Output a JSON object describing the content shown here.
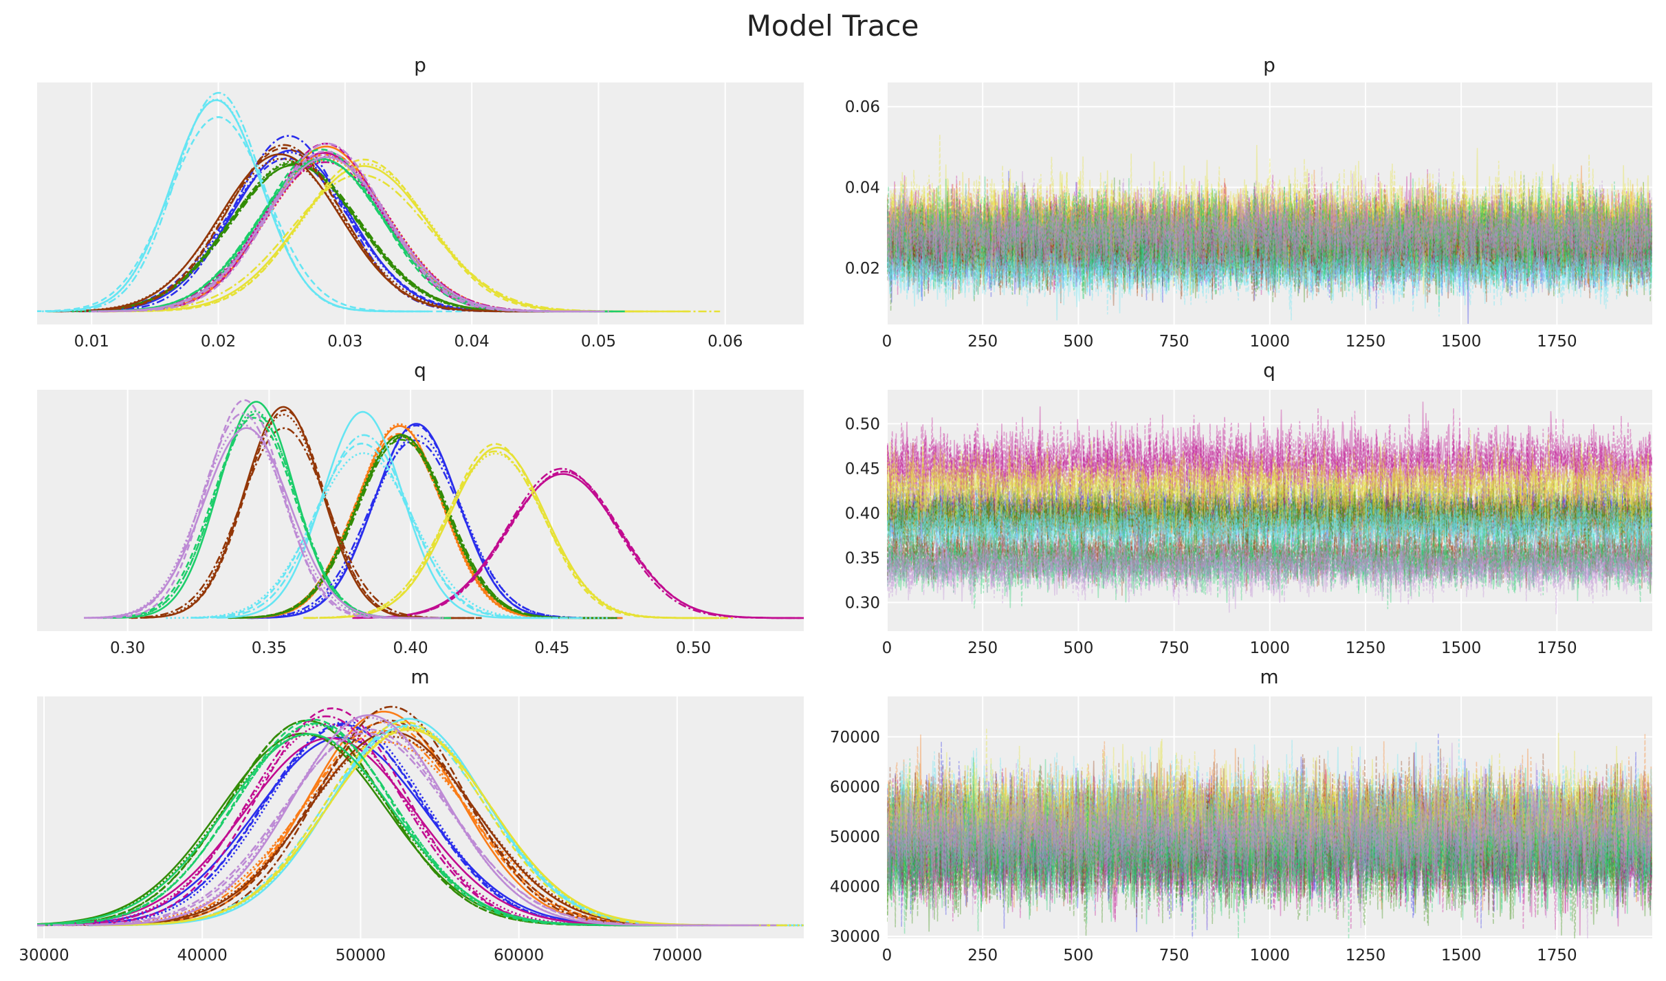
{
  "figure": {
    "title": "Model Trace",
    "background": "#eeeeee",
    "grid_color": "#ffffff"
  },
  "chain_linestyles": [
    "solid",
    "dashed",
    "dotted",
    "dashdot"
  ],
  "chart_data": [
    {
      "type": "line",
      "kind": "kde",
      "title": "p",
      "xlim": [
        0.0057,
        0.0662
      ],
      "grid": "x",
      "xticks": [
        0.01,
        0.02,
        0.03,
        0.04,
        0.05,
        0.06
      ],
      "xtick_labels": [
        "0.01",
        "0.02",
        "0.03",
        "0.04",
        "0.05",
        "0.06"
      ],
      "series": [
        {
          "color": "#2a2eec",
          "mean": 0.0255,
          "sd": 0.0046
        },
        {
          "color": "#fa7c17",
          "mean": 0.0285,
          "sd": 0.0048
        },
        {
          "color": "#328c06",
          "mean": 0.026,
          "sd": 0.005
        },
        {
          "color": "#c10c90",
          "mean": 0.0285,
          "sd": 0.0048
        },
        {
          "color": "#933708",
          "mean": 0.025,
          "sd": 0.0045
        },
        {
          "color": "#65e5f3",
          "mean": 0.02,
          "sd": 0.0035
        },
        {
          "color": "#e6e135",
          "mean": 0.0315,
          "sd": 0.0052
        },
        {
          "color": "#1ccd6a",
          "mean": 0.028,
          "sd": 0.005
        },
        {
          "color": "#bd8ad5",
          "mean": 0.0285,
          "sd": 0.0047
        }
      ]
    },
    {
      "type": "line",
      "kind": "trace",
      "title": "p",
      "xlim": [
        0,
        1999
      ],
      "ylim": [
        0.006,
        0.066
      ],
      "grid": "both",
      "xticks": [
        0,
        250,
        500,
        750,
        1000,
        1250,
        1500,
        1750
      ],
      "xtick_labels": [
        "0",
        "250",
        "500",
        "750",
        "1000",
        "1250",
        "1500",
        "1750"
      ],
      "yticks": [
        0.02,
        0.04,
        0.06
      ],
      "ytick_labels": [
        "0.02",
        "0.04",
        "0.06"
      ],
      "draws": 2000
    },
    {
      "type": "line",
      "kind": "kde",
      "title": "q",
      "xlim": [
        0.268,
        0.539
      ],
      "grid": "x",
      "xticks": [
        0.3,
        0.35,
        0.4,
        0.45,
        0.5
      ],
      "xtick_labels": [
        "0.30",
        "0.35",
        "0.40",
        "0.45",
        "0.50"
      ],
      "series": [
        {
          "color": "#2a2eec",
          "mean": 0.402,
          "sd": 0.016
        },
        {
          "color": "#fa7c17",
          "mean": 0.396,
          "sd": 0.0155
        },
        {
          "color": "#328c06",
          "mean": 0.397,
          "sd": 0.016
        },
        {
          "color": "#c10c90",
          "mean": 0.454,
          "sd": 0.02
        },
        {
          "color": "#933708",
          "mean": 0.355,
          "sd": 0.014
        },
        {
          "color": "#65e5f3",
          "mean": 0.383,
          "sd": 0.016
        },
        {
          "color": "#e6e135",
          "mean": 0.43,
          "sd": 0.017
        },
        {
          "color": "#1ccd6a",
          "mean": 0.345,
          "sd": 0.0145
        },
        {
          "color": "#bd8ad5",
          "mean": 0.341,
          "sd": 0.0145
        }
      ]
    },
    {
      "type": "line",
      "kind": "trace",
      "title": "q",
      "xlim": [
        0,
        1999
      ],
      "ylim": [
        0.268,
        0.538
      ],
      "grid": "both",
      "xticks": [
        0,
        250,
        500,
        750,
        1000,
        1250,
        1500,
        1750
      ],
      "xtick_labels": [
        "0",
        "250",
        "500",
        "750",
        "1000",
        "1250",
        "1500",
        "1750"
      ],
      "yticks": [
        0.3,
        0.35,
        0.4,
        0.45,
        0.5
      ],
      "ytick_labels": [
        "0.30",
        "0.35",
        "0.40",
        "0.45",
        "0.50"
      ],
      "draws": 2000
    },
    {
      "type": "line",
      "kind": "kde",
      "title": "m",
      "xlim": [
        29565,
        78000
      ],
      "grid": "x",
      "xticks": [
        30000,
        40000,
        50000,
        60000,
        70000
      ],
      "xtick_labels": [
        "30000",
        "40000",
        "50000",
        "60000",
        "70000"
      ],
      "series": [
        {
          "color": "#2a2eec",
          "mean": 49000,
          "sd": 5200
        },
        {
          "color": "#fa7c17",
          "mean": 51500,
          "sd": 5000
        },
        {
          "color": "#328c06",
          "mean": 46500,
          "sd": 5200
        },
        {
          "color": "#c10c90",
          "mean": 48000,
          "sd": 5100
        },
        {
          "color": "#933708",
          "mean": 52000,
          "sd": 5000
        },
        {
          "color": "#65e5f3",
          "mean": 53000,
          "sd": 4900
        },
        {
          "color": "#e6e135",
          "mean": 53000,
          "sd": 5000
        },
        {
          "color": "#1ccd6a",
          "mean": 47000,
          "sd": 5000
        },
        {
          "color": "#bd8ad5",
          "mean": 50500,
          "sd": 5000
        }
      ]
    },
    {
      "type": "line",
      "kind": "trace",
      "title": "m",
      "xlim": [
        0,
        1999
      ],
      "ylim": [
        29600,
        78100
      ],
      "grid": "both",
      "xticks": [
        0,
        250,
        500,
        750,
        1000,
        1250,
        1500,
        1750
      ],
      "xtick_labels": [
        "0",
        "250",
        "500",
        "750",
        "1000",
        "1250",
        "1500",
        "1750"
      ],
      "yticks": [
        30000,
        40000,
        50000,
        60000,
        70000
      ],
      "ytick_labels": [
        "30000",
        "40000",
        "50000",
        "60000",
        "70000"
      ],
      "draws": 2000
    }
  ]
}
